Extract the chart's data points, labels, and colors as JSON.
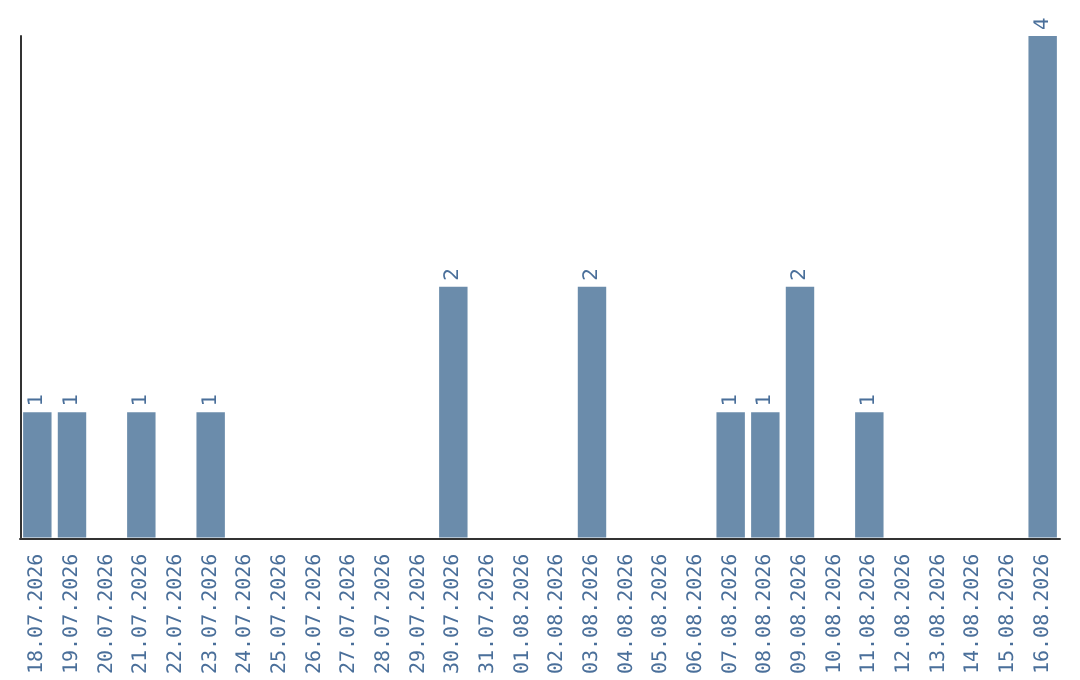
{
  "chart_data": {
    "type": "bar",
    "categories": [
      "18.07.2026",
      "19.07.2026",
      "20.07.2026",
      "21.07.2026",
      "22.07.2026",
      "23.07.2026",
      "24.07.2026",
      "25.07.2026",
      "26.07.2026",
      "27.07.2026",
      "28.07.2026",
      "29.07.2026",
      "30.07.2026",
      "31.07.2026",
      "01.08.2026",
      "02.08.2026",
      "03.08.2026",
      "04.08.2026",
      "05.08.2026",
      "06.08.2026",
      "07.08.2026",
      "08.08.2026",
      "09.08.2026",
      "10.08.2026",
      "11.08.2026",
      "12.08.2026",
      "13.08.2026",
      "14.08.2026",
      "15.08.2026",
      "16.08.2026"
    ],
    "values": [
      1,
      1,
      0,
      1,
      0,
      1,
      0,
      0,
      0,
      0,
      0,
      0,
      2,
      0,
      0,
      0,
      2,
      0,
      0,
      0,
      1,
      1,
      2,
      0,
      1,
      0,
      0,
      0,
      0,
      4
    ],
    "value_labels": [
      "1",
      "1",
      null,
      "1",
      null,
      "1",
      null,
      null,
      null,
      null,
      null,
      null,
      "2",
      null,
      null,
      null,
      "2",
      null,
      null,
      null,
      "1",
      "1",
      "2",
      null,
      "1",
      null,
      null,
      null,
      null,
      "4"
    ],
    "color": "#6b8cab",
    "tick_labels": "x"
  }
}
